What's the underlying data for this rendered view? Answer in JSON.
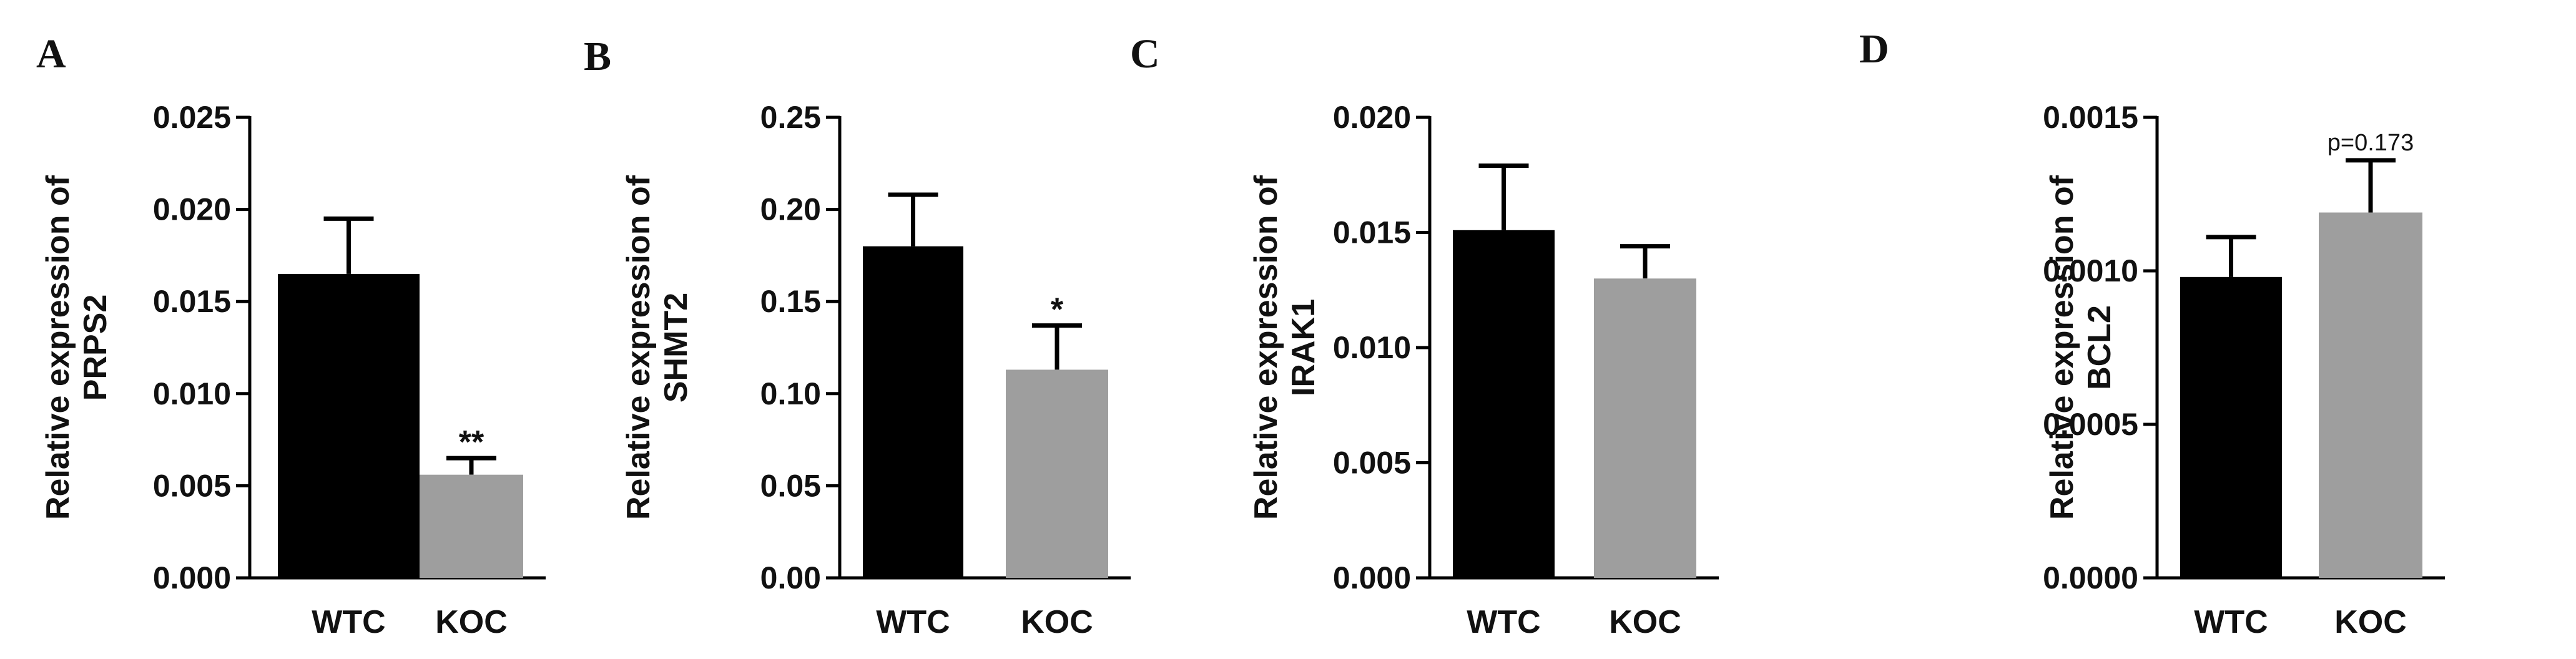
{
  "colors": {
    "WTC": "#000000",
    "KOC": "#9e9e9e",
    "axis": "#000000",
    "text": "#111111"
  },
  "chart_data": [
    {
      "type": "bar",
      "panel": "A",
      "ylabel_line1": "Relative expression of",
      "ylabel_line2": "PRPS2",
      "categories": [
        "WTC",
        "KOC"
      ],
      "values": [
        0.0165,
        0.0056
      ],
      "errors": [
        0.003,
        0.0009
      ],
      "significance": [
        "",
        "**"
      ],
      "ylim": [
        0,
        0.025
      ],
      "ticks": [
        0,
        0.005,
        0.01,
        0.015,
        0.02,
        0.025
      ],
      "tick_labels": [
        "0.000",
        "0.005",
        "0.010",
        "0.015",
        "0.020",
        "0.025"
      ]
    },
    {
      "type": "bar",
      "panel": "B",
      "ylabel_line1": "Relative expression of",
      "ylabel_line2": "SHMT2",
      "categories": [
        "WTC",
        "KOC"
      ],
      "values": [
        0.18,
        0.113
      ],
      "errors": [
        0.028,
        0.024
      ],
      "significance": [
        "",
        "*"
      ],
      "ylim": [
        0,
        0.25
      ],
      "ticks": [
        0,
        0.05,
        0.1,
        0.15,
        0.2,
        0.25
      ],
      "tick_labels": [
        "0.00",
        "0.05",
        "0.10",
        "0.15",
        "0.20",
        "0.25"
      ]
    },
    {
      "type": "bar",
      "panel": "C",
      "ylabel_line1": "Relative expression of",
      "ylabel_line2": "IRAK1",
      "categories": [
        "WTC",
        "KOC"
      ],
      "values": [
        0.0151,
        0.013
      ],
      "errors": [
        0.0028,
        0.0014
      ],
      "significance": [
        "",
        ""
      ],
      "ylim": [
        0,
        0.02
      ],
      "ticks": [
        0,
        0.005,
        0.01,
        0.015,
        0.02
      ],
      "tick_labels": [
        "0.000",
        "0.005",
        "0.010",
        "0.015",
        "0.020"
      ]
    },
    {
      "type": "bar",
      "panel": "D",
      "ylabel_line1": "Relative expression of",
      "ylabel_line2": "BCL2",
      "categories": [
        "WTC",
        "KOC"
      ],
      "values": [
        0.00098,
        0.00119
      ],
      "errors": [
        0.00013,
        0.00017
      ],
      "significance": [
        "",
        "p=0.173"
      ],
      "ylim": [
        0,
        0.0015
      ],
      "ticks": [
        0,
        0.0005,
        0.001,
        0.0015
      ],
      "tick_labels": [
        "0.0000",
        "0.0005",
        "0.0010",
        "0.0015"
      ]
    }
  ]
}
